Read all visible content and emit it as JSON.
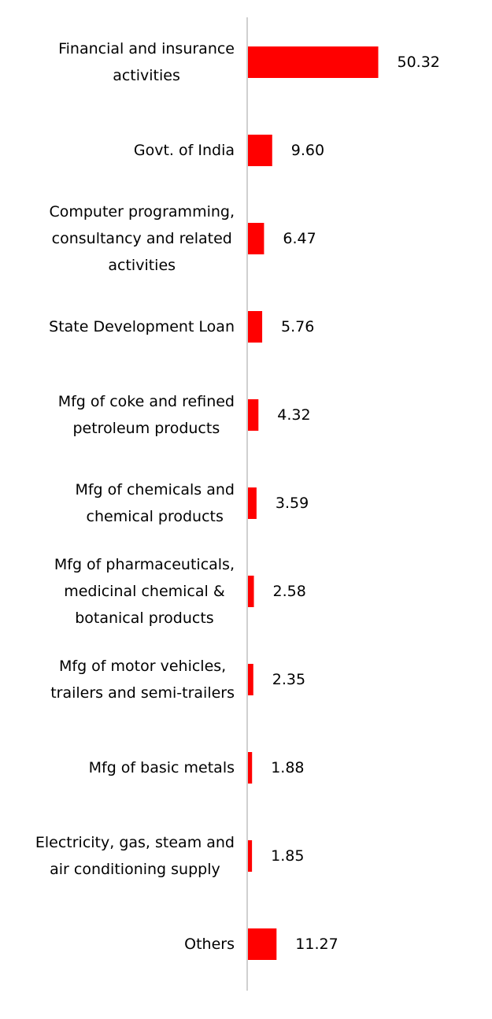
{
  "chart_data": {
    "type": "bar",
    "orientation": "horizontal",
    "categories": [
      [
        "Financial and insurance",
        "activities"
      ],
      [
        "Govt. of India"
      ],
      [
        "Computer programming,",
        "consultancy and related",
        "activities"
      ],
      [
        "State Development Loan"
      ],
      [
        "Mfg of coke and refined",
        "petroleum products"
      ],
      [
        "Mfg of chemicals and",
        "chemical products"
      ],
      [
        "Mfg of pharmaceuticals,",
        "medicinal chemical &",
        "botanical products"
      ],
      [
        "Mfg of motor vehicles,",
        "trailers and semi-trailers"
      ],
      [
        "Mfg of basic metals"
      ],
      [
        "Electricity, gas, steam and",
        "air conditioning supply"
      ],
      [
        "Others"
      ]
    ],
    "values": [
      50.32,
      9.6,
      6.47,
      5.76,
      4.32,
      3.59,
      2.58,
      2.35,
      1.88,
      1.85,
      11.27
    ],
    "value_labels": [
      "50.32",
      "9.60",
      "6.47",
      "5.76",
      "4.32",
      "3.59",
      "2.58",
      "2.35",
      "1.88",
      "1.85",
      "11.27"
    ],
    "title": "",
    "xlabel": "",
    "ylabel": "",
    "xlim": [
      0,
      55
    ],
    "grid": false,
    "legend": "none",
    "bar_color": "#ff0000",
    "axis_color": "#d0d0d0"
  }
}
